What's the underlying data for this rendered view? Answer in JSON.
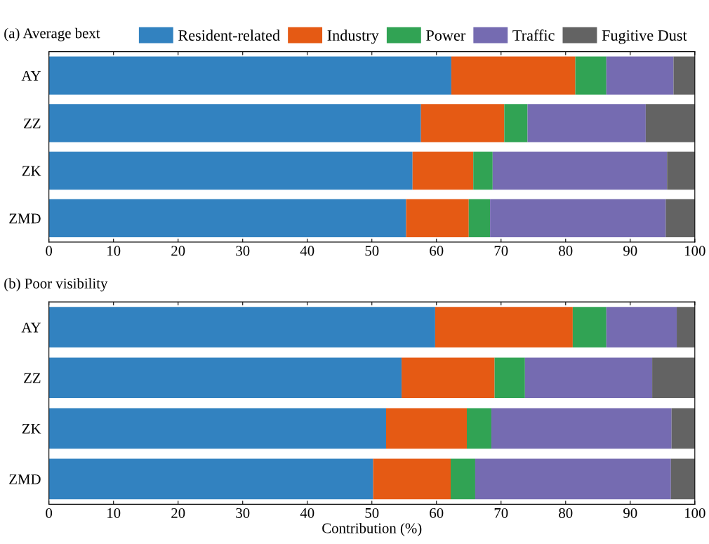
{
  "chart_data": [
    {
      "type": "bar",
      "orientation": "horizontal",
      "stacked": true,
      "title": "(a) Average bext",
      "categories": [
        "AY",
        "ZZ",
        "ZK",
        "ZMD"
      ],
      "xlim": [
        0,
        100
      ],
      "xticks": [
        0,
        10,
        20,
        30,
        40,
        50,
        60,
        70,
        80,
        90,
        100
      ],
      "grid": false,
      "legend": "top",
      "series": [
        {
          "name": "Resident-related",
          "color": "#3282c0",
          "values": [
            62.3,
            57.6,
            56.3,
            55.3
          ]
        },
        {
          "name": "Industry",
          "color": "#e55a14",
          "values": [
            19.2,
            12.9,
            9.4,
            9.7
          ]
        },
        {
          "name": "Power",
          "color": "#31a354",
          "values": [
            4.8,
            3.6,
            3.0,
            3.3
          ]
        },
        {
          "name": "Traffic",
          "color": "#756bb1",
          "values": [
            10.4,
            18.3,
            27.0,
            27.2
          ]
        },
        {
          "name": "Fugitive Dust",
          "color": "#636363",
          "values": [
            3.3,
            7.6,
            4.3,
            4.5
          ]
        }
      ]
    },
    {
      "type": "bar",
      "orientation": "horizontal",
      "stacked": true,
      "title": "(b) Poor visibility",
      "xlabel": "Contribution (%)",
      "categories": [
        "AY",
        "ZZ",
        "ZK",
        "ZMD"
      ],
      "xlim": [
        0,
        100
      ],
      "xticks": [
        0,
        10,
        20,
        30,
        40,
        50,
        60,
        70,
        80,
        90,
        100
      ],
      "grid": false,
      "series": [
        {
          "color": "#3282c0",
          "values": [
            59.8,
            54.6,
            52.2,
            50.2
          ]
        },
        {
          "color": "#e55a14",
          "values": [
            21.3,
            14.4,
            12.5,
            12.0
          ]
        },
        {
          "color": "#31a354",
          "values": [
            5.2,
            4.7,
            3.8,
            3.8
          ]
        },
        {
          "color": "#756bb1",
          "values": [
            10.9,
            19.7,
            27.9,
            30.3
          ]
        },
        {
          "color": "#636363",
          "values": [
            2.8,
            6.6,
            3.6,
            3.7
          ]
        }
      ]
    }
  ]
}
